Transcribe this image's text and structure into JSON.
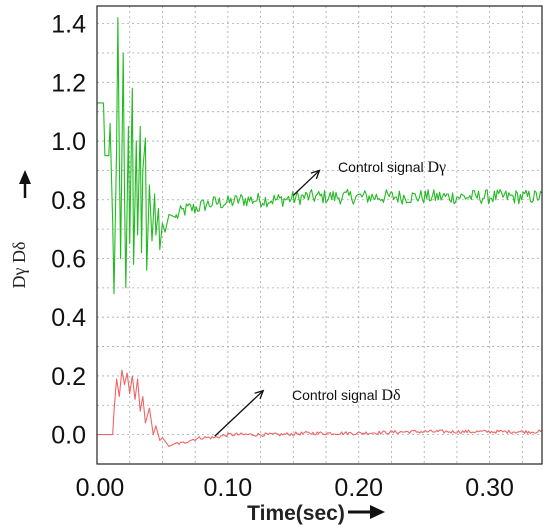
{
  "chart_data": {
    "type": "line",
    "xlabel": "Time(sec)",
    "ylabel": "Dγ   Dδ",
    "xlim": [
      0,
      0.34
    ],
    "ylim": [
      -0.1,
      1.46
    ],
    "x_ticks": [
      0,
      0.1,
      0.2,
      0.3
    ],
    "x_tick_labels": [
      "0.00",
      "0.10",
      "0.20",
      "0.30"
    ],
    "y_ticks": [
      0,
      0.2,
      0.4,
      0.6,
      0.8,
      1.0,
      1.2,
      1.4
    ],
    "y_tick_labels": [
      "0.0",
      "0.2",
      "0.4",
      "0.6",
      "0.8",
      "1.0",
      "1.2",
      "1.4"
    ],
    "grid": true,
    "series": [
      {
        "name": "Control signal Dγ",
        "color": "#22bb22",
        "points": [
          [
            0,
            1.13
          ],
          [
            0.005,
            1.13
          ],
          [
            0.006,
            0.95
          ],
          [
            0.009,
            0.95
          ],
          [
            0.01,
            1.06
          ],
          [
            0.012,
            0.72
          ],
          [
            0.013,
            0.48
          ],
          [
            0.015,
            0.98
          ],
          [
            0.016,
            1.42
          ],
          [
            0.017,
            0.95
          ],
          [
            0.018,
            0.6
          ],
          [
            0.02,
            1.3
          ],
          [
            0.021,
            0.82
          ],
          [
            0.022,
            0.5
          ],
          [
            0.024,
            1.05
          ],
          [
            0.025,
            0.65
          ],
          [
            0.027,
            1.18
          ],
          [
            0.028,
            0.58
          ],
          [
            0.03,
            1.0
          ],
          [
            0.031,
            0.68
          ],
          [
            0.033,
            1.05
          ],
          [
            0.034,
            0.62
          ],
          [
            0.035,
            0.9
          ],
          [
            0.037,
            1.01
          ],
          [
            0.038,
            0.56
          ],
          [
            0.04,
            0.85
          ],
          [
            0.042,
            0.66
          ],
          [
            0.044,
            0.82
          ],
          [
            0.045,
            0.68
          ],
          [
            0.047,
            0.77
          ],
          [
            0.048,
            0.63
          ],
          [
            0.05,
            0.72
          ],
          [
            0.052,
            0.69
          ],
          [
            0.055,
            0.75
          ],
          [
            0.06,
            0.74
          ],
          [
            0.065,
            0.76
          ],
          [
            0.07,
            0.77
          ],
          [
            0.075,
            0.77
          ],
          [
            0.08,
            0.78
          ],
          [
            0.09,
            0.79
          ],
          [
            0.1,
            0.79
          ],
          [
            0.11,
            0.8
          ],
          [
            0.12,
            0.8
          ],
          [
            0.14,
            0.8
          ],
          [
            0.16,
            0.81
          ],
          [
            0.18,
            0.81
          ],
          [
            0.2,
            0.81
          ],
          [
            0.22,
            0.81
          ],
          [
            0.24,
            0.81
          ],
          [
            0.26,
            0.81
          ],
          [
            0.28,
            0.81
          ],
          [
            0.3,
            0.81
          ],
          [
            0.32,
            0.81
          ],
          [
            0.34,
            0.81
          ]
        ],
        "noise": 0.025
      },
      {
        "name": "Control signal Dδ",
        "color": "#ee6666",
        "points": [
          [
            0,
            0.0
          ],
          [
            0.012,
            0.0
          ],
          [
            0.013,
            0.08
          ],
          [
            0.015,
            0.19
          ],
          [
            0.017,
            0.13
          ],
          [
            0.019,
            0.22
          ],
          [
            0.021,
            0.17
          ],
          [
            0.023,
            0.21
          ],
          [
            0.025,
            0.14
          ],
          [
            0.027,
            0.2
          ],
          [
            0.029,
            0.12
          ],
          [
            0.031,
            0.19
          ],
          [
            0.033,
            0.08
          ],
          [
            0.035,
            0.13
          ],
          [
            0.037,
            0.04
          ],
          [
            0.04,
            0.09
          ],
          [
            0.043,
            0.0
          ],
          [
            0.045,
            0.03
          ],
          [
            0.048,
            -0.02
          ],
          [
            0.05,
            -0.01
          ],
          [
            0.055,
            -0.04
          ],
          [
            0.06,
            -0.03
          ],
          [
            0.065,
            -0.03
          ],
          [
            0.07,
            -0.02
          ],
          [
            0.08,
            -0.01
          ],
          [
            0.09,
            -0.01
          ],
          [
            0.1,
            0.0
          ],
          [
            0.12,
            0.0
          ],
          [
            0.14,
            0.0
          ],
          [
            0.16,
            0.005
          ],
          [
            0.2,
            0.005
          ],
          [
            0.24,
            0.01
          ],
          [
            0.28,
            0.01
          ],
          [
            0.32,
            0.01
          ],
          [
            0.34,
            0.01
          ]
        ],
        "noise": 0.006
      }
    ],
    "annotations": [
      {
        "text": "Control signal",
        "symbol": "Dγ",
        "arrow_from": [
          0.15,
          0.815
        ],
        "arrow_to": [
          0.17,
          0.9
        ]
      },
      {
        "text": "Control signal",
        "symbol": "Dδ",
        "arrow_from": [
          0.09,
          -0.005
        ],
        "arrow_to": [
          0.127,
          0.15
        ]
      }
    ]
  }
}
